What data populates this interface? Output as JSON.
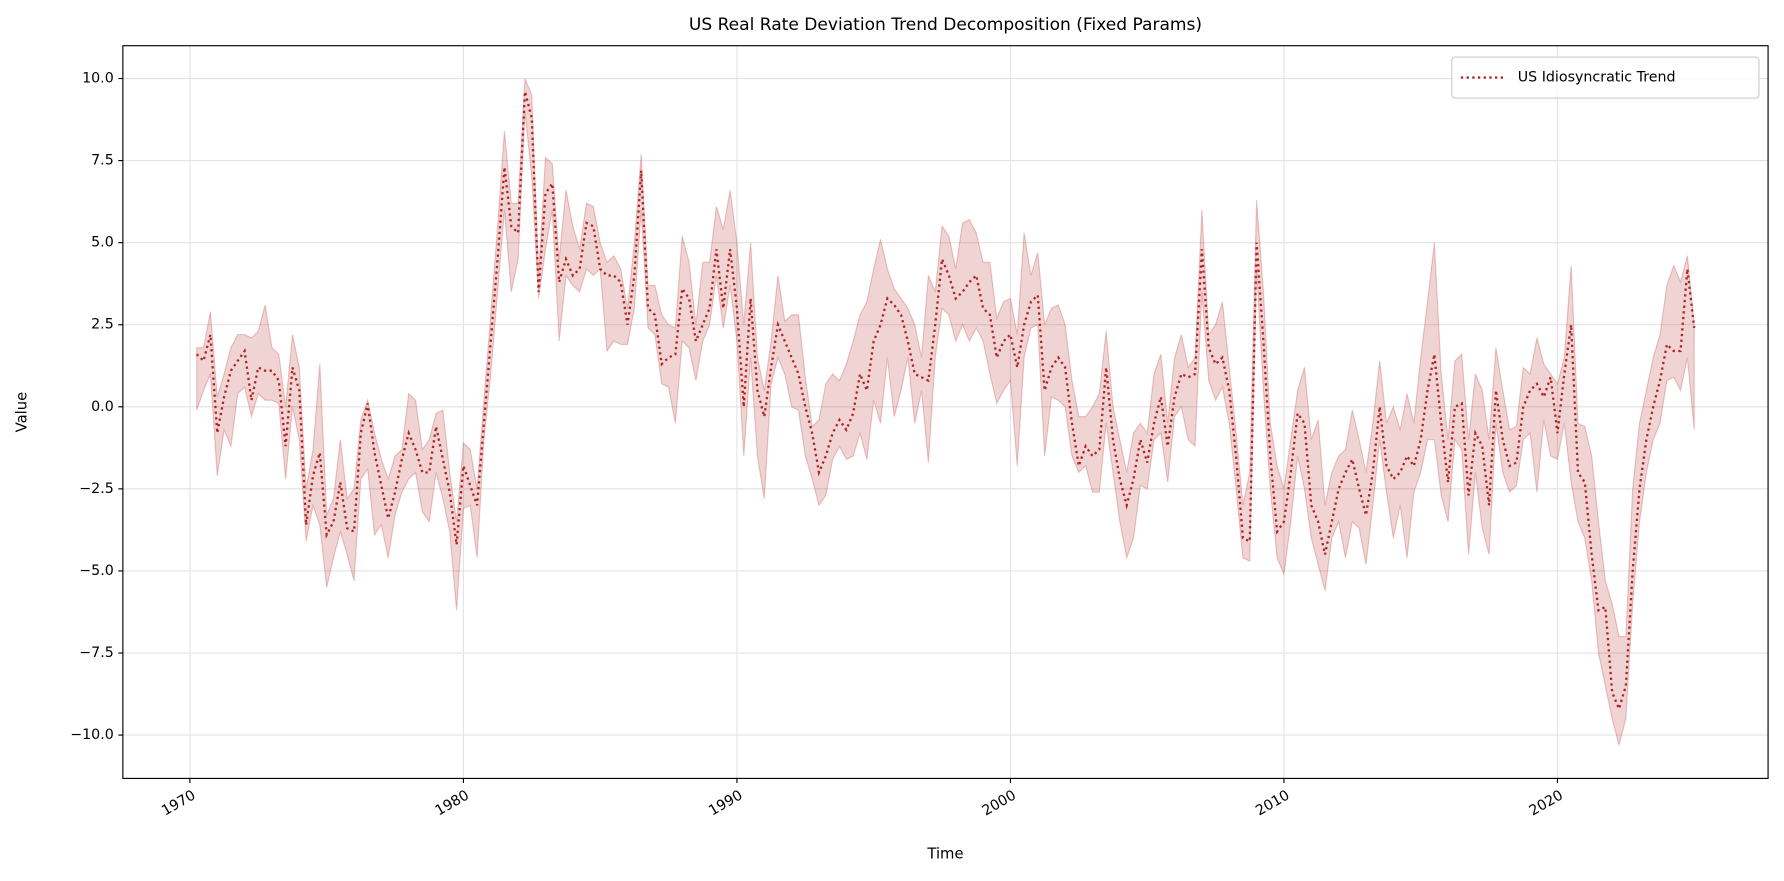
{
  "chart_data": {
    "type": "line",
    "title": "US Real Rate Deviation Trend Decomposition (Fixed Params)",
    "x_label": "Time",
    "y_label": "Value",
    "grid": true,
    "legend": "upper right",
    "xlim": [
      1967.55,
      2027.7
    ],
    "ylim": [
      -11.32,
      11.0
    ],
    "xticks": [
      1970,
      1980,
      1990,
      2000,
      2010,
      2020
    ],
    "yticks": [
      {
        "value": -10,
        "label": "−10.0"
      },
      {
        "value": -7.5,
        "label": "−7.5"
      },
      {
        "value": -5,
        "label": "−5.0"
      },
      {
        "value": -2.5,
        "label": "−2.5"
      },
      {
        "value": 0,
        "label": "0.0"
      },
      {
        "value": 2.5,
        "label": "2.5"
      },
      {
        "value": 5,
        "label": "5.0"
      },
      {
        "value": 7.5,
        "label": "7.5"
      },
      {
        "value": 10,
        "label": "10.0"
      }
    ],
    "x": [
      1970.25,
      1970.5,
      1970.75,
      1971,
      1971.25,
      1971.5,
      1971.75,
      1972,
      1972.25,
      1972.5,
      1972.75,
      1973,
      1973.25,
      1973.5,
      1973.75,
      1974,
      1974.25,
      1974.5,
      1974.75,
      1975,
      1975.25,
      1975.5,
      1975.75,
      1976,
      1976.25,
      1976.5,
      1976.75,
      1977,
      1977.25,
      1977.5,
      1977.75,
      1978,
      1978.25,
      1978.5,
      1978.75,
      1979,
      1979.25,
      1979.5,
      1979.75,
      1980,
      1980.25,
      1980.5,
      1980.75,
      1981,
      1981.25,
      1981.5,
      1981.75,
      1982,
      1982.25,
      1982.5,
      1982.75,
      1983,
      1983.25,
      1983.5,
      1983.75,
      1984,
      1984.25,
      1984.5,
      1984.75,
      1985,
      1985.25,
      1985.5,
      1985.75,
      1986,
      1986.25,
      1986.5,
      1986.75,
      1987,
      1987.25,
      1987.5,
      1987.75,
      1988,
      1988.25,
      1988.5,
      1988.75,
      1989,
      1989.25,
      1989.5,
      1989.75,
      1990,
      1990.25,
      1990.5,
      1990.75,
      1991,
      1991.25,
      1991.5,
      1991.75,
      1992,
      1992.25,
      1992.5,
      1992.75,
      1993,
      1993.25,
      1993.5,
      1993.75,
      1994,
      1994.25,
      1994.5,
      1994.75,
      1995,
      1995.25,
      1995.5,
      1995.75,
      1996,
      1996.25,
      1996.5,
      1996.75,
      1997,
      1997.25,
      1997.5,
      1997.75,
      1998,
      1998.25,
      1998.5,
      1998.75,
      1999,
      1999.25,
      1999.5,
      1999.75,
      2000,
      2000.25,
      2000.5,
      2000.75,
      2001,
      2001.25,
      2001.5,
      2001.75,
      2002,
      2002.25,
      2002.5,
      2002.75,
      2003,
      2003.25,
      2003.5,
      2003.75,
      2004,
      2004.25,
      2004.5,
      2004.75,
      2005,
      2005.25,
      2005.5,
      2005.75,
      2006,
      2006.25,
      2006.5,
      2006.75,
      2007,
      2007.25,
      2007.5,
      2007.75,
      2008,
      2008.25,
      2008.5,
      2008.75,
      2009,
      2009.25,
      2009.5,
      2009.75,
      2010,
      2010.25,
      2010.5,
      2010.75,
      2011,
      2011.25,
      2011.5,
      2011.75,
      2012,
      2012.25,
      2012.5,
      2012.75,
      2013,
      2013.25,
      2013.5,
      2013.75,
      2014,
      2014.25,
      2014.5,
      2014.75,
      2015,
      2015.25,
      2015.5,
      2015.75,
      2016,
      2016.25,
      2016.5,
      2016.75,
      2017,
      2017.25,
      2017.5,
      2017.75,
      2018,
      2018.25,
      2018.5,
      2018.75,
      2019,
      2019.25,
      2019.5,
      2019.75,
      2020,
      2020.25,
      2020.5,
      2020.75,
      2021,
      2021.25,
      2021.5,
      2021.75,
      2022,
      2022.25,
      2022.5,
      2022.75,
      2023,
      2023.25,
      2023.5,
      2023.75,
      2024,
      2024.25,
      2024.5,
      2024.75,
      2025
    ],
    "series": [
      {
        "name": "US Idiosyncratic Trend",
        "color": "#b22222",
        "values": [
          1.6,
          1.4,
          2.2,
          -0.8,
          0.3,
          1.1,
          1.4,
          1.7,
          0.2,
          1.2,
          1.1,
          1.1,
          0.8,
          -1.2,
          1.2,
          0.5,
          -3.6,
          -2.1,
          -1.4,
          -3.9,
          -3.5,
          -2.3,
          -3.7,
          -3.8,
          -0.8,
          0.1,
          -1.4,
          -2.4,
          -3.4,
          -2.6,
          -1.6,
          -0.8,
          -1.3,
          -2.0,
          -2.0,
          -0.6,
          -1.6,
          -2.6,
          -4.2,
          -1.8,
          -2.4,
          -3.0,
          -0.5,
          2.0,
          4.5,
          7.3,
          5.5,
          5.3,
          9.6,
          8.8,
          3.5,
          6.5,
          6.8,
          3.8,
          4.5,
          4.0,
          4.2,
          5.6,
          5.5,
          4.2,
          4.0,
          4.0,
          3.8,
          2.5,
          4.0,
          7.2,
          3.0,
          2.8,
          1.3,
          1.5,
          1.6,
          3.6,
          3.3,
          2.0,
          2.5,
          3.0,
          4.8,
          3.0,
          4.8,
          3.0,
          0.0,
          3.3,
          0.5,
          -0.3,
          1.2,
          2.5,
          2.0,
          1.5,
          1.0,
          0.0,
          -0.8,
          -2.0,
          -1.5,
          -0.8,
          -0.4,
          -0.7,
          -0.2,
          1.0,
          0.5,
          2.0,
          2.5,
          3.3,
          3.1,
          2.8,
          2.0,
          1.0,
          0.9,
          0.8,
          2.5,
          4.5,
          4.0,
          3.3,
          3.5,
          3.8,
          4.0,
          3.0,
          2.8,
          1.5,
          2.0,
          2.2,
          1.2,
          2.5,
          3.2,
          3.4,
          0.5,
          1.2,
          1.5,
          1.2,
          -0.5,
          -1.8,
          -1.2,
          -1.5,
          -1.3,
          1.2,
          -1.0,
          -2.2,
          -3.0,
          -2.2,
          -1.0,
          -1.7,
          -0.5,
          0.3,
          -1.2,
          0.3,
          1.0,
          0.9,
          1.0,
          4.8,
          1.8,
          1.3,
          1.5,
          0.5,
          -1.5,
          -4.0,
          -4.1,
          5.0,
          2.0,
          -1.5,
          -3.8,
          -3.5,
          -2.0,
          -0.2,
          -0.5,
          -3.0,
          -3.5,
          -4.5,
          -3.5,
          -2.5,
          -2.0,
          -1.6,
          -2.5,
          -3.3,
          -2.0,
          0.0,
          -1.8,
          -2.2,
          -2.0,
          -1.5,
          -1.8,
          -1.0,
          0.5,
          1.6,
          -0.5,
          -2.3,
          0.0,
          0.1,
          -2.7,
          -0.8,
          -1.2,
          -3.0,
          0.5,
          -1.0,
          -1.8,
          -1.7,
          0.0,
          0.5,
          0.7,
          0.3,
          0.9,
          -0.8,
          1.0,
          2.5,
          -2.0,
          -2.3,
          -4.5,
          -6.2,
          -6.1,
          -8.7,
          -9.2,
          -8.5,
          -5.0,
          -2.5,
          -1.0,
          0.0,
          0.8,
          1.9,
          1.7,
          1.7,
          4.2,
          2.4
        ],
        "lower": [
          -0.1,
          0.5,
          1.0,
          -2.1,
          -0.7,
          -1.2,
          0.4,
          0.6,
          -0.3,
          0.4,
          0.2,
          0.2,
          0.1,
          -2.2,
          0.0,
          -1.0,
          -4.1,
          -3.0,
          -3.6,
          -5.5,
          -4.6,
          -3.8,
          -4.5,
          -5.3,
          -2.2,
          -1.9,
          -3.9,
          -3.6,
          -4.6,
          -3.3,
          -2.6,
          -2.2,
          -2.0,
          -3.2,
          -3.5,
          -2.0,
          -2.8,
          -3.8,
          -6.2,
          -3.1,
          -3.0,
          -4.6,
          -1.0,
          1.0,
          3.5,
          6.0,
          3.5,
          4.5,
          9.0,
          7.0,
          3.3,
          4.8,
          6.0,
          2.0,
          4.0,
          3.7,
          3.5,
          4.2,
          4.0,
          4.2,
          1.7,
          2.0,
          1.9,
          1.9,
          3.0,
          6.0,
          2.4,
          2.2,
          0.7,
          0.6,
          -0.5,
          2.0,
          1.8,
          0.8,
          2.0,
          2.5,
          4.0,
          2.4,
          3.7,
          2.0,
          -1.5,
          1.5,
          -1.5,
          -2.8,
          0.7,
          1.5,
          1.0,
          0.0,
          -0.1,
          -1.5,
          -2.2,
          -3.0,
          -2.7,
          -1.6,
          -1.2,
          -1.6,
          -1.5,
          -0.8,
          -1.6,
          0.2,
          -0.5,
          1.5,
          -0.3,
          0.5,
          1.5,
          -0.5,
          0.5,
          -1.7,
          1.5,
          3.0,
          2.8,
          2.0,
          2.5,
          2.0,
          2.4,
          2.0,
          1.0,
          0.1,
          0.5,
          0.8,
          -1.8,
          1.5,
          2.4,
          2.5,
          -1.5,
          0.3,
          0.2,
          0.0,
          -1.5,
          -2.0,
          -1.8,
          -2.6,
          -2.6,
          -0.5,
          -2.0,
          -3.5,
          -4.6,
          -4.0,
          -2.4,
          -2.5,
          -1.0,
          -0.8,
          -2.3,
          -0.3,
          0.0,
          -1.0,
          -1.2,
          3.5,
          0.8,
          0.2,
          0.6,
          -0.5,
          -2.5,
          -4.6,
          -4.7,
          4.2,
          0.5,
          -2.5,
          -4.6,
          -5.1,
          -3.5,
          -1.5,
          -2.5,
          -4.0,
          -4.8,
          -5.6,
          -4.0,
          -3.5,
          -4.6,
          -3.5,
          -3.7,
          -4.8,
          -3.0,
          -1.0,
          -2.6,
          -4.0,
          -3.0,
          -4.6,
          -2.6,
          -2.0,
          -1.0,
          -1.0,
          -2.7,
          -3.5,
          -1.0,
          -1.3,
          -4.5,
          -2.0,
          -3.7,
          -4.5,
          -0.5,
          -2.0,
          -2.6,
          -2.4,
          -1.0,
          -0.8,
          -2.6,
          -0.4,
          -1.5,
          -1.6,
          -0.5,
          -2.3,
          -3.5,
          -4.0,
          -5.3,
          -7.5,
          -8.5,
          -9.5,
          -10.3,
          -9.5,
          -6.0,
          -3.5,
          -2.0,
          -1.0,
          -0.5,
          0.8,
          0.9,
          0.5,
          1.5,
          -0.7
        ],
        "upper": [
          1.8,
          1.8,
          2.9,
          0.3,
          1.0,
          1.8,
          2.2,
          2.2,
          2.1,
          2.3,
          3.1,
          1.8,
          1.6,
          0.0,
          2.2,
          1.2,
          -2.5,
          -1.3,
          1.3,
          -3.3,
          -2.8,
          -1.0,
          -2.8,
          -2.5,
          -0.4,
          0.2,
          -0.8,
          -1.6,
          -2.2,
          -1.5,
          -1.3,
          0.4,
          0.2,
          -1.3,
          -1.0,
          -0.2,
          -0.1,
          -2.0,
          -3.5,
          -1.1,
          -1.3,
          -2.5,
          0.2,
          2.8,
          5.5,
          8.4,
          6.2,
          6.2,
          10.0,
          9.5,
          4.0,
          7.6,
          7.4,
          4.5,
          6.6,
          5.5,
          4.8,
          6.2,
          6.1,
          5.0,
          4.4,
          4.6,
          4.2,
          3.0,
          5.0,
          7.7,
          3.7,
          3.7,
          2.8,
          2.5,
          2.4,
          5.2,
          4.4,
          2.5,
          4.4,
          4.4,
          6.1,
          5.4,
          6.6,
          5.0,
          2.5,
          5.0,
          1.5,
          0.5,
          2.0,
          4.0,
          2.6,
          2.8,
          2.8,
          0.9,
          -0.6,
          -0.4,
          0.7,
          1.0,
          0.8,
          1.3,
          2.0,
          2.8,
          3.2,
          4.2,
          5.1,
          4.2,
          3.6,
          3.3,
          3.0,
          2.5,
          1.5,
          4.0,
          3.5,
          5.5,
          5.2,
          4.2,
          5.6,
          5.7,
          5.3,
          4.4,
          4.4,
          2.7,
          3.2,
          3.3,
          2.2,
          5.3,
          4.0,
          4.7,
          2.5,
          3.0,
          3.1,
          2.5,
          0.8,
          -0.3,
          -0.3,
          0.0,
          0.4,
          2.3,
          0.0,
          -1.0,
          -2.0,
          -0.8,
          -0.5,
          -0.8,
          1.0,
          1.6,
          -0.5,
          1.5,
          2.2,
          1.2,
          1.5,
          6.0,
          2.2,
          2.5,
          3.2,
          1.2,
          -0.8,
          -3.0,
          -2.0,
          6.3,
          3.5,
          -0.5,
          -1.8,
          -2.5,
          -1.0,
          0.5,
          1.2,
          -1.0,
          -0.4,
          -3.0,
          -2.0,
          -1.5,
          -1.3,
          -0.1,
          -1.0,
          -2.0,
          -0.5,
          1.4,
          -0.5,
          0.0,
          -0.7,
          0.4,
          -0.5,
          1.5,
          3.2,
          5.0,
          1.0,
          -1.0,
          1.4,
          1.6,
          -1.0,
          1.0,
          0.5,
          -1.0,
          1.8,
          0.5,
          -0.7,
          -0.6,
          1.2,
          1.0,
          2.1,
          1.3,
          1.0,
          0.7,
          1.5,
          4.3,
          -0.5,
          -0.6,
          -1.5,
          -3.5,
          -5.3,
          -6.0,
          -7.0,
          -7.0,
          -2.5,
          -0.5,
          0.5,
          1.5,
          2.2,
          3.7,
          4.3,
          3.8,
          4.6,
          2.5
        ]
      }
    ]
  }
}
